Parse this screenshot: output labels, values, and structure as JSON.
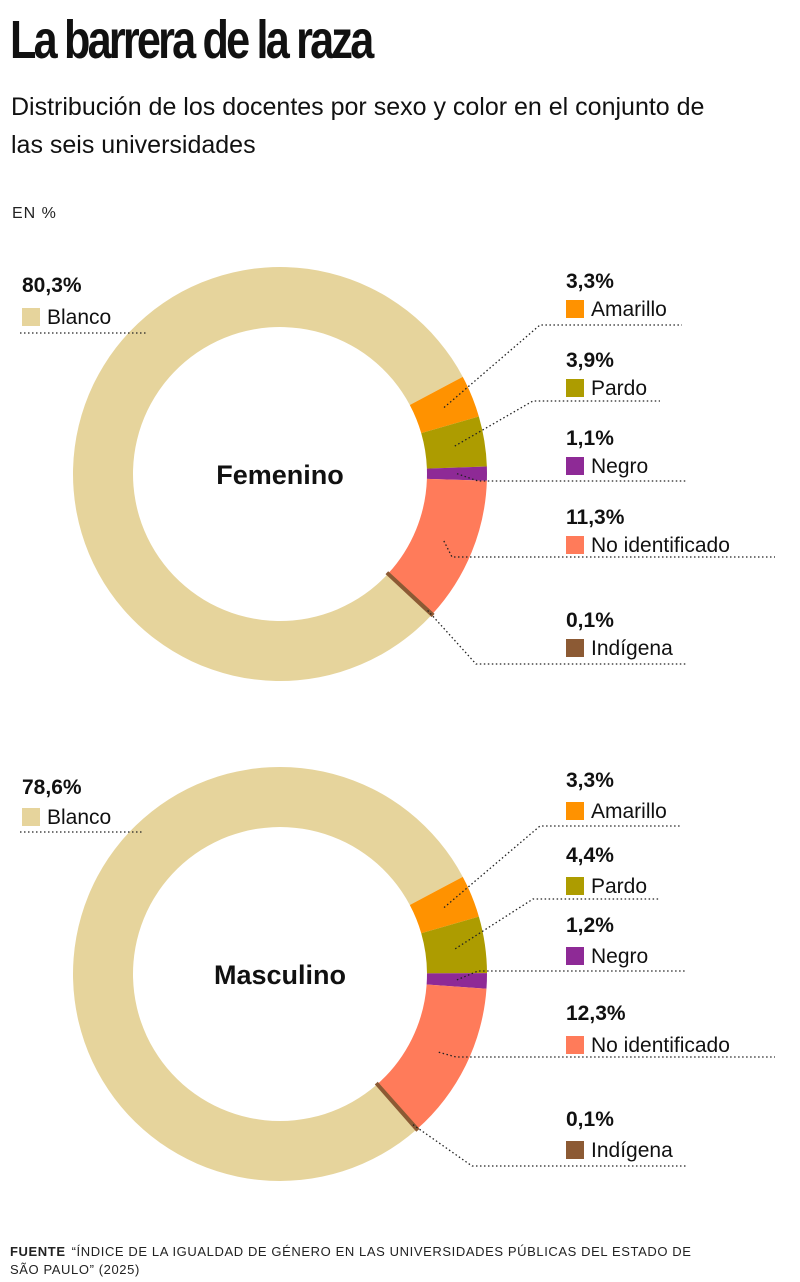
{
  "title": "La barrera de la raza",
  "subtitle": "Distribución de los docentes por sexo y color en el conjunto de las seis universidades",
  "unit_label": "EN  %",
  "source": {
    "label": "FUENTE",
    "text": "“ÍNDICE DE LA IGUALDAD DE GÉNERO EN LAS UNIVERSIDADES PÚBLICAS DEL ESTADO DE SÃO PAULO” (2025)"
  },
  "colors": {
    "Blanco": "#e6d49c",
    "Amarillo": "#ff9200",
    "Pardo": "#ad9c00",
    "Negro": "#8e2a96",
    "No identificado": "#ff7b5a",
    "Indígena": "#8c5a34"
  },
  "chart_data": [
    {
      "type": "pie",
      "center_label": "Femenino",
      "slices": [
        {
          "label": "Blanco",
          "value": 80.3,
          "value_label": "80,3%"
        },
        {
          "label": "Amarillo",
          "value": 3.3,
          "value_label": "3,3%"
        },
        {
          "label": "Pardo",
          "value": 3.9,
          "value_label": "3,9%"
        },
        {
          "label": "Negro",
          "value": 1.1,
          "value_label": "1,1%"
        },
        {
          "label": "No identificado",
          "value": 11.3,
          "value_label": "11,3%"
        },
        {
          "label": "Indígena",
          "value": 0.1,
          "value_label": "0,1%"
        }
      ]
    },
    {
      "type": "pie",
      "center_label": "Masculino",
      "slices": [
        {
          "label": "Blanco",
          "value": 78.6,
          "value_label": "78,6%"
        },
        {
          "label": "Amarillo",
          "value": 3.3,
          "value_label": "3,3%"
        },
        {
          "label": "Pardo",
          "value": 4.4,
          "value_label": "4,4%"
        },
        {
          "label": "Negro",
          "value": 1.2,
          "value_label": "1,2%"
        },
        {
          "label": "No identificado",
          "value": 12.3,
          "value_label": "12,3%"
        },
        {
          "label": "Indígena",
          "value": 0.1,
          "value_label": "0,1%"
        }
      ]
    }
  ]
}
